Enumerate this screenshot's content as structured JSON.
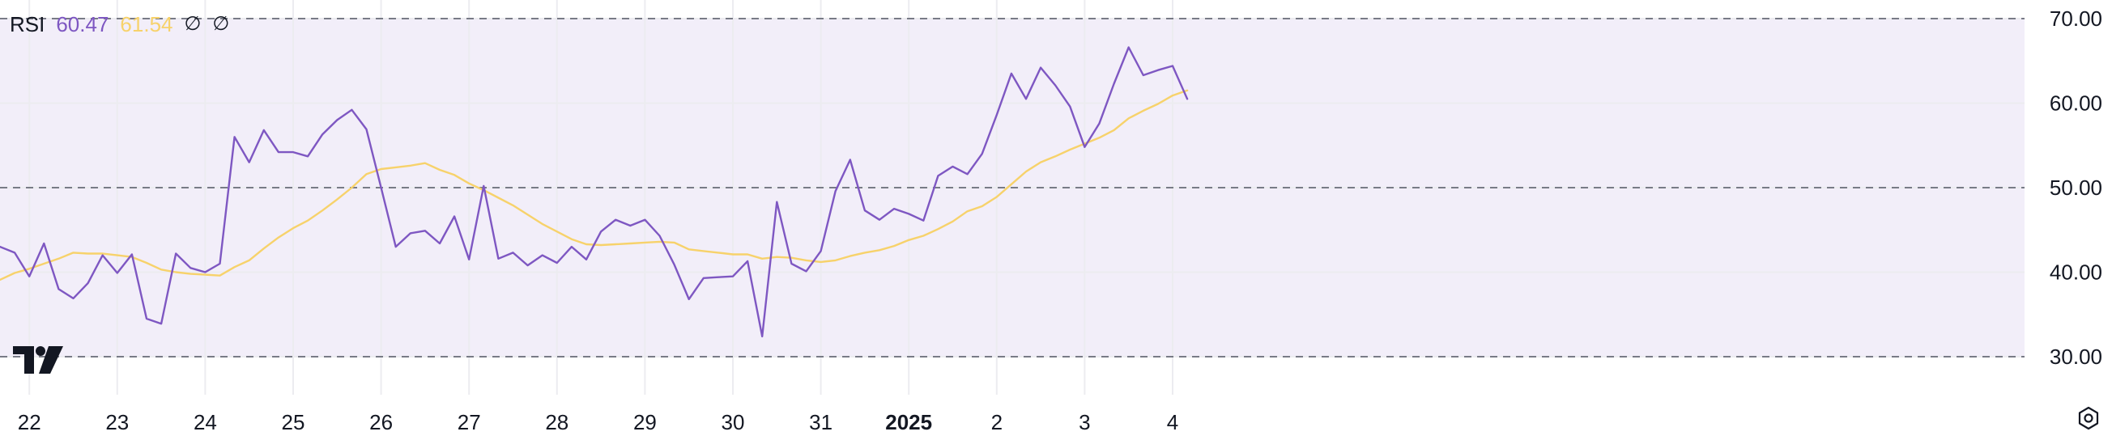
{
  "legend": {
    "indicator": "RSI",
    "rsi_value": "60.47",
    "ma_value": "61.54",
    "flag_1": "∅",
    "flag_2": "∅"
  },
  "icons": {
    "logo": "tradingview-logo-icon",
    "settings": "gear-icon"
  },
  "colors": {
    "rsi_line": "#7e57c2",
    "ma_line": "#f7d26b",
    "band_fill": "#7e57c2",
    "grid": "#ececf0",
    "dashed": "#787b86",
    "text": "#131722"
  },
  "chart_data": {
    "type": "line",
    "ylim": [
      25.5,
      72.2
    ],
    "band": [
      30,
      70
    ],
    "grid": true,
    "dashed_levels": [
      70,
      50,
      30
    ],
    "y_ticks": [
      "70.00",
      "60.00",
      "50.00",
      "40.00",
      "30.00"
    ],
    "y_tick_values": [
      70,
      60,
      50,
      40,
      30
    ],
    "x_ticks": [
      "22",
      "23",
      "24",
      "25",
      "26",
      "27",
      "28",
      "29",
      "30",
      "31",
      "2025",
      "2",
      "3",
      "4"
    ],
    "x_tick_bold": [
      false,
      false,
      false,
      false,
      false,
      false,
      false,
      false,
      false,
      false,
      true,
      false,
      false,
      false
    ],
    "x_tick_index": [
      2,
      8,
      14,
      20,
      26,
      32,
      38,
      44,
      50,
      56,
      62,
      68,
      74,
      80
    ],
    "series": [
      {
        "key": "rsi",
        "values": [
          43.0,
          42.3,
          39.5,
          43.4,
          38.0,
          36.9,
          38.7,
          42.0,
          39.9,
          42.1,
          34.5,
          33.9,
          42.2,
          40.5,
          40.0,
          41.0,
          56.0,
          53.0,
          56.8,
          54.2,
          54.2,
          53.7,
          56.3,
          58.0,
          59.2,
          56.9,
          50.0,
          43.0,
          44.6,
          44.9,
          43.4,
          46.6,
          41.5,
          50.2,
          41.6,
          42.3,
          40.8,
          42.0,
          41.1,
          43.0,
          41.5,
          44.8,
          46.2,
          45.5,
          46.2,
          44.3,
          40.9,
          36.8,
          39.3,
          39.4,
          39.5,
          41.3,
          32.4,
          48.3,
          41.0,
          40.1,
          42.5,
          49.6,
          53.3,
          47.3,
          46.2,
          47.5,
          46.9,
          46.1,
          51.4,
          52.5,
          51.6,
          54.0,
          58.6,
          63.5,
          60.5,
          64.2,
          62.1,
          59.6,
          54.8,
          57.6,
          62.3,
          66.6,
          63.3,
          63.9,
          64.4,
          60.5
        ]
      },
      {
        "key": "ma",
        "values": [
          39.1,
          39.9,
          40.4,
          41.0,
          41.6,
          42.3,
          42.2,
          42.2,
          42.0,
          41.8,
          41.1,
          40.3,
          40.0,
          39.8,
          39.7,
          39.6,
          40.6,
          41.4,
          42.8,
          44.1,
          45.2,
          46.1,
          47.3,
          48.6,
          50.0,
          51.6,
          52.2,
          52.4,
          52.6,
          52.9,
          52.1,
          51.5,
          50.5,
          49.7,
          48.8,
          47.9,
          46.8,
          45.7,
          44.8,
          43.9,
          43.3,
          43.2,
          43.3,
          43.4,
          43.5,
          43.6,
          43.5,
          42.7,
          42.5,
          42.3,
          42.1,
          42.1,
          41.6,
          41.8,
          41.7,
          41.4,
          41.2,
          41.4,
          41.9,
          42.3,
          42.6,
          43.1,
          43.8,
          44.3,
          45.1,
          46.0,
          47.2,
          47.8,
          48.9,
          50.4,
          51.9,
          53.0,
          53.7,
          54.5,
          55.2,
          55.9,
          56.8,
          58.2,
          59.1,
          59.9,
          60.9,
          61.5
        ]
      }
    ]
  }
}
